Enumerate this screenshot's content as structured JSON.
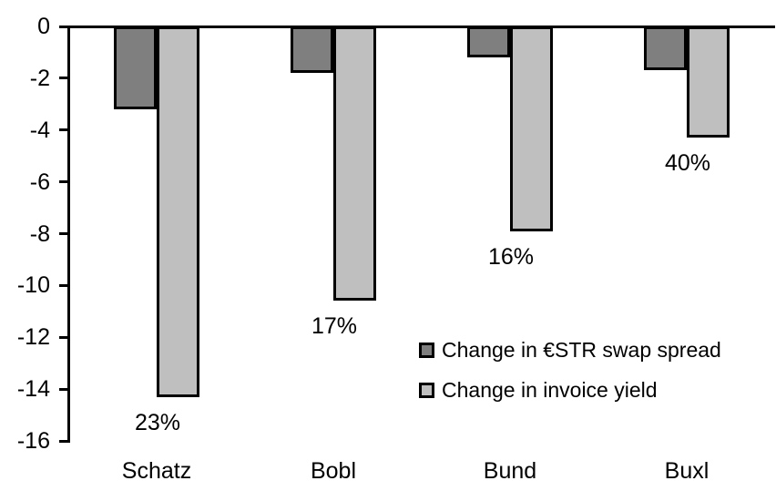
{
  "chart_data": {
    "type": "bar",
    "title": "",
    "xlabel": "",
    "ylabel": "",
    "categories": [
      "Schatz",
      "Bobl",
      "Bund",
      "Buxl"
    ],
    "series": [
      {
        "name": "Change in €STR swap spread",
        "color": "#7F7F7F",
        "values": [
          -3.2,
          -1.8,
          -1.2,
          -1.7
        ]
      },
      {
        "name": "Change in invoice yield",
        "color": "#BFBFBF",
        "values": [
          -14.3,
          -10.6,
          -7.9,
          -4.3
        ]
      }
    ],
    "bar_labels": {
      "series": "Change in invoice yield",
      "values": [
        "23%",
        "17%",
        "16%",
        "40%"
      ]
    },
    "yticks": [
      0,
      -2,
      -4,
      -6,
      -8,
      -10,
      -12,
      -14,
      -16
    ],
    "ylim": [
      -16,
      0
    ],
    "grid": false,
    "legend_position": "inside-right",
    "colors": {
      "bar_border": "#000000",
      "axis": "#000000",
      "text": "#000000",
      "background": "#FFFFFF"
    }
  }
}
